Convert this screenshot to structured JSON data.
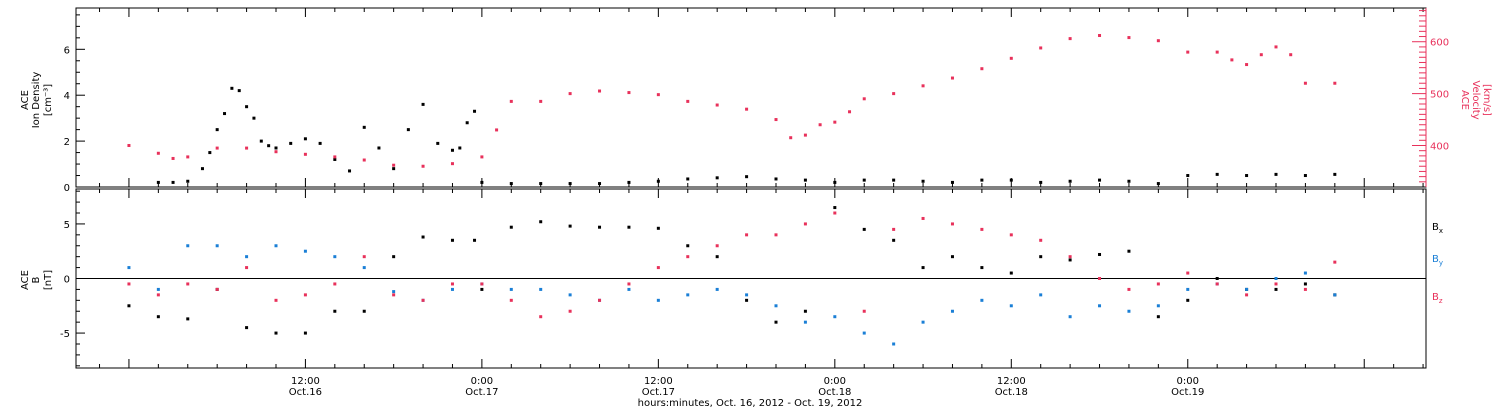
{
  "colors": {
    "black": "#000000",
    "pink": "#e8315b",
    "blue": "#1a7fd6"
  },
  "chart_data": [
    {
      "type": "scatter",
      "panel": "top",
      "left_axis": {
        "label_line1": "ACE",
        "label_line2": "Ion Density",
        "label_line3": "[cm⁻³]",
        "ylim": [
          0,
          7.8
        ],
        "ticks": [
          "0",
          "2",
          "4",
          "6"
        ]
      },
      "right_axis": {
        "label_line1": "ACE",
        "label_line2": "Velocity",
        "label_line3": "[km/s]",
        "ylim": [
          320,
          665
        ],
        "ticks": [
          "400",
          "500",
          "600"
        ],
        "color": "#e8315b"
      },
      "series": [
        {
          "axis": "left",
          "color": "#000000",
          "x": [
            2,
            3,
            4,
            5,
            5.5,
            6,
            6.5,
            7,
            7.5,
            8,
            8.5,
            9,
            9.5,
            10,
            11,
            12,
            13,
            14,
            15,
            16,
            17,
            18,
            19,
            20,
            21,
            22,
            22.5,
            23,
            23.5,
            24,
            26,
            28,
            30,
            32,
            34,
            36,
            38,
            40,
            42,
            44,
            46,
            48,
            50,
            52,
            54,
            56,
            58,
            60,
            62,
            64,
            66,
            68,
            70,
            72,
            74,
            76,
            78,
            80,
            82
          ],
          "values": [
            0.2,
            0.2,
            0.25,
            0.8,
            1.5,
            2.5,
            3.2,
            4.3,
            4.2,
            3.5,
            3.0,
            2.0,
            1.8,
            1.7,
            1.9,
            2.1,
            1.9,
            1.2,
            0.7,
            2.6,
            1.7,
            0.8,
            2.5,
            3.6,
            1.9,
            1.6,
            1.7,
            2.8,
            3.3,
            0.2,
            0.15,
            0.15,
            0.15,
            0.15,
            0.2,
            0.25,
            0.35,
            0.4,
            0.45,
            0.35,
            0.3,
            0.2,
            0.3,
            0.3,
            0.25,
            0.2,
            0.3,
            0.3,
            0.2,
            0.25,
            0.3,
            0.25,
            0.15,
            0.5,
            0.55,
            0.5,
            0.55,
            0.5,
            0.55
          ]
        },
        {
          "axis": "right",
          "color": "#e8315b",
          "x": [
            0,
            2,
            3,
            4,
            6,
            8,
            10,
            12,
            14,
            16,
            18,
            20,
            22,
            24,
            25,
            26,
            28,
            30,
            32,
            34,
            36,
            38,
            40,
            42,
            44,
            45,
            46,
            47,
            48,
            49,
            50,
            52,
            54,
            56,
            58,
            60,
            62,
            64,
            66,
            68,
            70,
            72,
            74,
            75,
            76,
            77,
            78,
            79,
            80,
            82
          ],
          "values": [
            400,
            385,
            375,
            378,
            395,
            395,
            388,
            383,
            378,
            372,
            362,
            360,
            365,
            378,
            430,
            485,
            485,
            500,
            505,
            502,
            498,
            485,
            478,
            470,
            450,
            415,
            420,
            440,
            445,
            465,
            490,
            500,
            515,
            530,
            548,
            568,
            588,
            606,
            612,
            608,
            602,
            580,
            580,
            565,
            556,
            575,
            590,
            575,
            520,
            520
          ]
        }
      ]
    },
    {
      "type": "scatter",
      "panel": "bottom",
      "left_axis": {
        "label_line1": "ACE",
        "label_line2": "B",
        "label_line3": "[nT]",
        "ylim": [
          -8.2,
          8.2
        ],
        "ticks": [
          "-5",
          "0",
          "5"
        ]
      },
      "legend": [
        {
          "base": "B",
          "sub": "x",
          "color": "#000000"
        },
        {
          "base": "B",
          "sub": "y",
          "color": "#1a7fd6"
        },
        {
          "base": "B",
          "sub": "z",
          "color": "#e8315b"
        }
      ],
      "series": [
        {
          "name": "Bx",
          "color": "#000000",
          "x": [
            0,
            2,
            4,
            6,
            8,
            10,
            12,
            14,
            16,
            18,
            20,
            22,
            23.5,
            24,
            26,
            28,
            30,
            32,
            34,
            36,
            38,
            40,
            42,
            44,
            46,
            48,
            50,
            52,
            54,
            56,
            58,
            60,
            62,
            64,
            66,
            68,
            70,
            72,
            74,
            76,
            78,
            80,
            82
          ],
          "values": [
            -2.5,
            -3.5,
            -3.7,
            -1,
            -4.5,
            -5,
            -5,
            -3,
            -3,
            2,
            3.8,
            3.5,
            3.5,
            -1,
            4.7,
            5.2,
            4.8,
            4.7,
            4.7,
            4.6,
            3,
            2,
            -2,
            -4,
            -3,
            6.5,
            4.5,
            3.5,
            1,
            2,
            1,
            0.5,
            2,
            1.7,
            2.2,
            2.5,
            -3.5,
            -2,
            0,
            -1,
            -1,
            -0.5,
            -1.5
          ]
        },
        {
          "name": "By",
          "color": "#1a7fd6",
          "x": [
            0,
            2,
            4,
            6,
            8,
            10,
            12,
            14,
            16,
            18,
            20,
            22,
            24,
            26,
            28,
            30,
            32,
            34,
            36,
            38,
            40,
            42,
            44,
            46,
            48,
            50,
            52,
            54,
            56,
            58,
            60,
            62,
            64,
            66,
            68,
            70,
            72,
            74,
            76,
            78,
            80,
            82
          ],
          "values": [
            1,
            -1,
            3,
            3,
            2,
            3,
            2.5,
            2,
            1,
            -1.2,
            -2,
            -1,
            -0.5,
            -1,
            -1,
            -1.5,
            -2,
            -1,
            -2,
            -1.5,
            -1,
            -1.5,
            -2.5,
            -4,
            -3.5,
            -5,
            -6,
            -4,
            -3,
            -2,
            -2.5,
            -1.5,
            -3.5,
            -2.5,
            -3,
            -2.5,
            -1,
            -0.5,
            -1,
            0,
            0.5,
            -1.5
          ]
        },
        {
          "name": "Bz",
          "color": "#e8315b",
          "x": [
            0,
            2,
            4,
            6,
            8,
            10,
            12,
            14,
            16,
            18,
            20,
            22,
            24,
            26,
            28,
            30,
            32,
            34,
            36,
            38,
            40,
            42,
            44,
            46,
            48,
            50,
            52,
            54,
            56,
            58,
            60,
            62,
            64,
            66,
            68,
            70,
            72,
            74,
            76,
            78,
            80,
            82
          ],
          "values": [
            -0.5,
            -1.5,
            -0.5,
            -1,
            1,
            -2,
            -1.5,
            -0.5,
            2,
            -1.5,
            -2,
            -0.5,
            -0.5,
            -2,
            -3.5,
            -3,
            -2,
            -0.5,
            1,
            2,
            3,
            4,
            4,
            5,
            6,
            -3,
            4.5,
            5.5,
            5,
            4.5,
            4,
            3.5,
            2,
            0,
            -1,
            -0.5,
            0.5,
            -0.5,
            -1.5,
            -0.5,
            -1,
            1.5
          ]
        }
      ]
    }
  ],
  "x_axis": {
    "range_hours": [
      -3.6,
      88.2
    ],
    "title": "hours:minutes, Oct. 16, 2012 - Oct. 19, 2012",
    "labels": [
      {
        "time": "12:00",
        "date": "Oct.16",
        "hour": 12
      },
      {
        "time": "0:00",
        "date": "Oct.17",
        "hour": 24
      },
      {
        "time": "12:00",
        "date": "Oct.17",
        "hour": 36
      },
      {
        "time": "0:00",
        "date": "Oct.18",
        "hour": 48
      },
      {
        "time": "12:00",
        "date": "Oct.18",
        "hour": 60
      },
      {
        "time": "0:00",
        "date": "Oct.19",
        "hour": 72
      }
    ]
  }
}
